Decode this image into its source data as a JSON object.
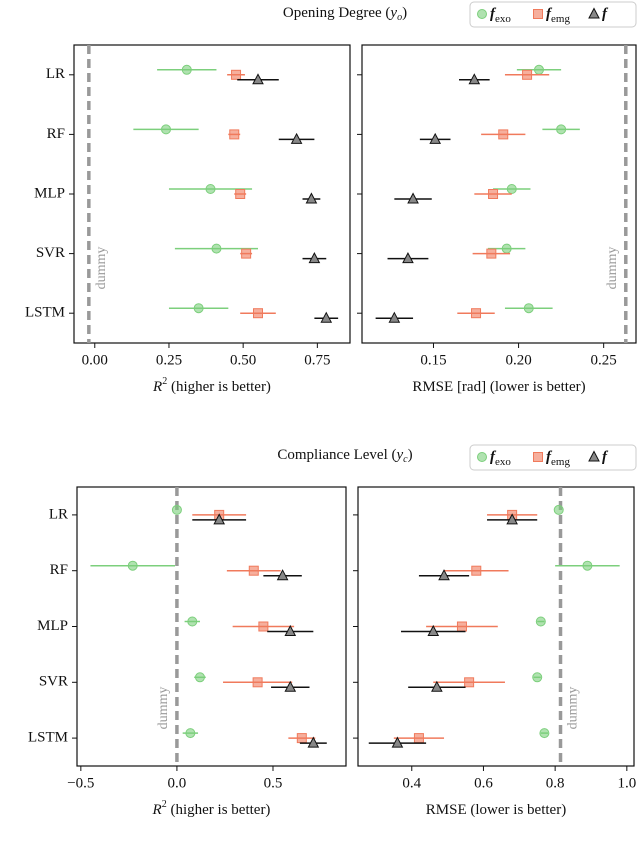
{
  "chart_data": [
    {
      "type": "errorbar",
      "title": "Opening Degree (",
      "title_var": "y",
      "title_sub": "o",
      "title_end": ")",
      "categories": [
        "LR",
        "RF",
        "MLP",
        "SVR",
        "LSTM"
      ],
      "series": [
        {
          "color": "#7ccf7c",
          "marker": "circle",
          "values": [
            0.31,
            0.24,
            0.39,
            0.41,
            0.35
          ],
          "errors": [
            0.1,
            0.11,
            0.14,
            0.14,
            0.1
          ]
        },
        {
          "color": "#f07a5c",
          "marker": "square",
          "values": [
            0.476,
            0.47,
            0.49,
            0.51,
            0.55
          ],
          "errors": [
            0.03,
            0.02,
            0.02,
            0.02,
            0.06
          ]
        },
        {
          "color": "#111111",
          "marker": "triangle",
          "values": [
            0.55,
            0.68,
            0.73,
            0.74,
            0.78
          ],
          "errors": [
            0.07,
            0.06,
            0.03,
            0.04,
            0.04
          ]
        }
      ],
      "xlim": [
        -0.07,
        0.86
      ],
      "xticks": [
        {
          "value": 0,
          "label": "0.00"
        },
        0.25,
        {
          "value": 0.5,
          "label": "0.50"
        },
        0.75
      ],
      "xlabel_var": "R",
      "xlabel_sup": "2",
      "xlabel": " (higher is better)",
      "dummy": {
        "value": -0.02,
        "label": "dummy"
      }
    },
    {
      "type": "errorbar",
      "series": [
        {
          "name": "f",
          "name_sub": "exo",
          "color": "#7ccf7c",
          "marker": "circle",
          "values": [
            0.212,
            0.225,
            0.196,
            0.193,
            0.206
          ],
          "errors": [
            0.013,
            0.011,
            0.011,
            0.011,
            0.014
          ]
        },
        {
          "name": "f",
          "name_sub": "emg",
          "color": "#f07a5c",
          "marker": "square",
          "values": [
            0.205,
            0.191,
            0.185,
            0.184,
            0.175
          ],
          "errors": [
            0.013,
            0.013,
            0.011,
            0.011,
            0.011
          ]
        },
        {
          "name": "f",
          "color": "#111111",
          "marker": "triangle",
          "values": [
            0.174,
            0.151,
            0.138,
            0.135,
            0.127
          ],
          "errors": [
            0.009,
            0.009,
            0.011,
            0.012,
            0.011
          ]
        }
      ],
      "legend": true,
      "xlim": [
        0.108,
        0.269
      ],
      "xticks": [
        0.15,
        {
          "value": 0.2,
          "label": "0.20"
        },
        0.25
      ],
      "xlabel": "RMSE [rad] (lower is better)",
      "dummy": {
        "value": 0.263,
        "label": "dummy"
      }
    },
    {
      "type": "errorbar",
      "title": "Compliance Level (",
      "title_var": "y",
      "title_sub": "c",
      "title_end": ")",
      "categories": [
        "LR",
        "RF",
        "MLP",
        "SVR",
        "LSTM"
      ],
      "series": [
        {
          "color": "#7ccf7c",
          "marker": "circle",
          "values": [
            0.0,
            -0.23,
            0.08,
            0.12,
            0.07
          ],
          "errors": [
            0.0,
            0.22,
            0.04,
            0.03,
            0.04
          ]
        },
        {
          "color": "#f07a5c",
          "marker": "square",
          "values": [
            0.22,
            0.4,
            0.45,
            0.42,
            0.65
          ],
          "errors": [
            0.14,
            0.14,
            0.16,
            0.18,
            0.07
          ]
        },
        {
          "color": "#111111",
          "marker": "triangle",
          "values": [
            0.22,
            0.55,
            0.59,
            0.59,
            0.71
          ],
          "errors": [
            0.14,
            0.1,
            0.12,
            0.1,
            0.07
          ]
        }
      ],
      "xlim": [
        -0.52,
        0.88
      ],
      "xticks": [
        {
          "value": -0.5,
          "label": "−0.5"
        },
        {
          "value": 0,
          "label": "0.0"
        },
        0.5
      ],
      "xlabel_var": "R",
      "xlabel_sup": "2",
      "xlabel": " (higher is better)",
      "dummy": {
        "value": 0,
        "label": "dummy"
      }
    },
    {
      "type": "errorbar",
      "series": [
        {
          "name": "f",
          "name_sub": "exo",
          "color": "#7ccf7c",
          "marker": "circle",
          "values": [
            0.81,
            0.89,
            0.76,
            0.75,
            0.77
          ],
          "errors": [
            0.0,
            0.09,
            0.01,
            0.01,
            0.01
          ]
        },
        {
          "name": "f",
          "name_sub": "emg",
          "color": "#f07a5c",
          "marker": "square",
          "values": [
            0.68,
            0.58,
            0.54,
            0.56,
            0.42
          ],
          "errors": [
            0.07,
            0.09,
            0.1,
            0.1,
            0.07
          ]
        },
        {
          "name": "f",
          "color": "#111111",
          "marker": "triangle",
          "values": [
            0.68,
            0.49,
            0.46,
            0.47,
            0.36
          ],
          "errors": [
            0.07,
            0.07,
            0.09,
            0.08,
            0.08
          ]
        }
      ],
      "legend": true,
      "xlim": [
        0.25,
        1.02
      ],
      "xticks": [
        0.4,
        0.6,
        0.8,
        {
          "value": 1,
          "label": "1.0"
        }
      ],
      "xlabel": "RMSE (lower is better)",
      "dummy": {
        "value": 0.815,
        "label": "dummy"
      }
    }
  ]
}
